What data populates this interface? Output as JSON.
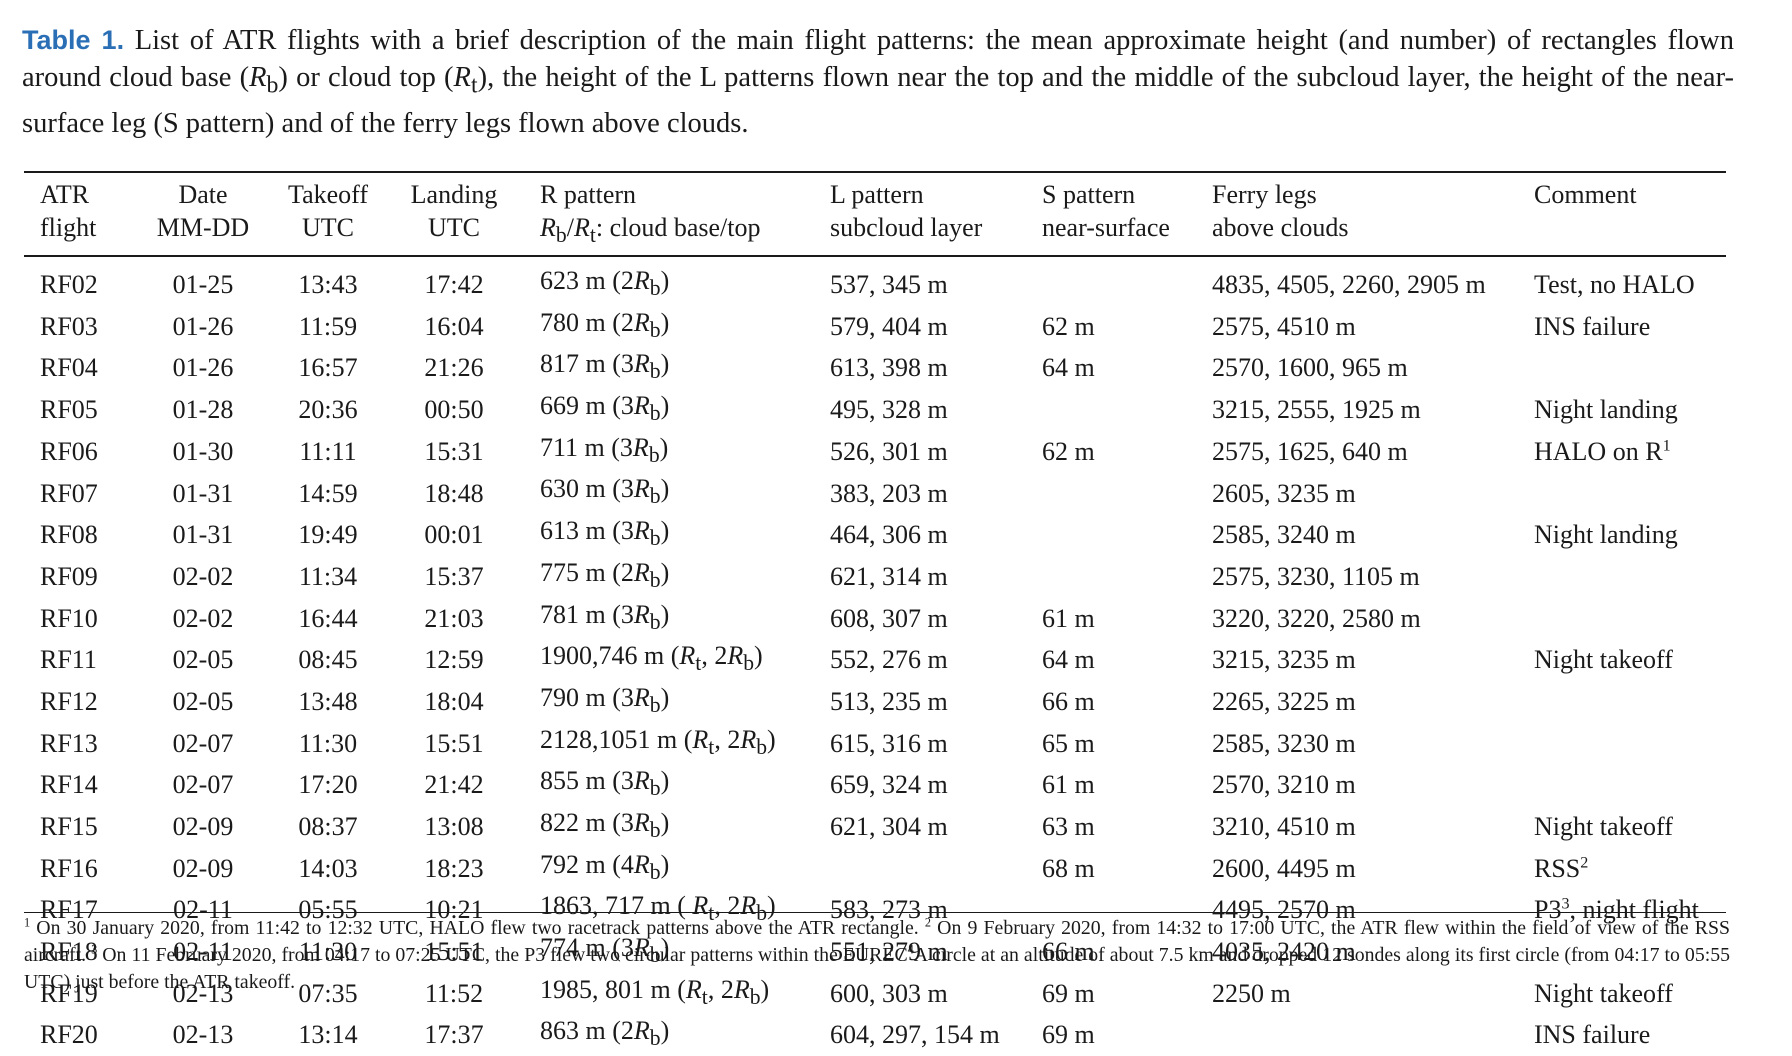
{
  "caption": {
    "label": "Table 1.",
    "text": "List of ATR flights with a brief description of the main flight patterns: the mean approximate height (and number) of rectangles flown around cloud base (Rb) or cloud top (Rt), the height of the L patterns flown near the top and the middle of the subcloud layer, the height of the near-surface leg (S pattern) and of the ferry legs flown above clouds."
  },
  "headers": {
    "atr": [
      "ATR",
      "flight"
    ],
    "date": [
      "Date",
      "MM-DD"
    ],
    "takeoff": [
      "Takeoff",
      "UTC"
    ],
    "landing": [
      "Landing",
      "UTC"
    ],
    "r": [
      "R pattern",
      "Rb/Rt: cloud base/top"
    ],
    "l": [
      "L pattern",
      "subcloud layer"
    ],
    "s": [
      "S pattern",
      "near-surface"
    ],
    "ferry": [
      "Ferry legs",
      "above clouds"
    ],
    "comment": [
      "Comment",
      ""
    ]
  },
  "rows": [
    {
      "atr": "RF02",
      "date": "01-25",
      "takeoff": "13:43",
      "landing": "17:42",
      "r": "623 m (2Rb)",
      "l": "537, 345 m",
      "s": "",
      "ferry": "4835, 4505, 2260, 2905 m",
      "comment": "Test, no HALO"
    },
    {
      "atr": "RF03",
      "date": "01-26",
      "takeoff": "11:59",
      "landing": "16:04",
      "r": "780 m (2Rb)",
      "l": "579, 404 m",
      "s": "62 m",
      "ferry": "2575, 4510 m",
      "comment": "INS failure"
    },
    {
      "atr": "RF04",
      "date": "01-26",
      "takeoff": "16:57",
      "landing": "21:26",
      "r": "817 m (3Rb)",
      "l": "613, 398 m",
      "s": "64 m",
      "ferry": "2570, 1600, 965 m",
      "comment": ""
    },
    {
      "atr": "RF05",
      "date": "01-28",
      "takeoff": "20:36",
      "landing": "00:50",
      "r": "669 m (3Rb)",
      "l": "495, 328 m",
      "s": "",
      "ferry": "3215, 2555, 1925 m",
      "comment": "Night landing"
    },
    {
      "atr": "RF06",
      "date": "01-30",
      "takeoff": "11:11",
      "landing": "15:31",
      "r": "711 m (3Rb)",
      "l": "526, 301 m",
      "s": "62 m",
      "ferry": "2575, 1625, 640 m",
      "comment": "HALO on R1"
    },
    {
      "atr": "RF07",
      "date": "01-31",
      "takeoff": "14:59",
      "landing": "18:48",
      "r": "630 m (3Rb)",
      "l": "383, 203 m",
      "s": "",
      "ferry": "2605, 3235 m",
      "comment": ""
    },
    {
      "atr": "RF08",
      "date": "01-31",
      "takeoff": "19:49",
      "landing": "00:01",
      "r": "613 m (3Rb)",
      "l": "464, 306 m",
      "s": "",
      "ferry": "2585, 3240 m",
      "comment": "Night landing"
    },
    {
      "atr": "RF09",
      "date": "02-02",
      "takeoff": "11:34",
      "landing": "15:37",
      "r": "775 m (2Rb)",
      "l": "621, 314 m",
      "s": "",
      "ferry": "2575, 3230, 1105 m",
      "comment": ""
    },
    {
      "atr": "RF10",
      "date": "02-02",
      "takeoff": "16:44",
      "landing": "21:03",
      "r": "781 m (3Rb)",
      "l": "608, 307 m",
      "s": "61 m",
      "ferry": "3220, 3220, 2580 m",
      "comment": ""
    },
    {
      "atr": "RF11",
      "date": "02-05",
      "takeoff": "08:45",
      "landing": "12:59",
      "r": "1900,746 m (Rt, 2Rb)",
      "l": "552, 276 m",
      "s": "64 m",
      "ferry": "3215, 3235 m",
      "comment": "Night takeoff"
    },
    {
      "atr": "RF12",
      "date": "02-05",
      "takeoff": "13:48",
      "landing": "18:04",
      "r": "790 m (3Rb)",
      "l": "513, 235 m",
      "s": "66 m",
      "ferry": "2265, 3225 m",
      "comment": ""
    },
    {
      "atr": "RF13",
      "date": "02-07",
      "takeoff": "11:30",
      "landing": "15:51",
      "r": "2128,1051 m (Rt, 2Rb)",
      "l": "615, 316 m",
      "s": "65 m",
      "ferry": "2585, 3230 m",
      "comment": ""
    },
    {
      "atr": "RF14",
      "date": "02-07",
      "takeoff": "17:20",
      "landing": "21:42",
      "r": "855 m (3Rb)",
      "l": "659, 324 m",
      "s": "61 m",
      "ferry": "2570, 3210 m",
      "comment": ""
    },
    {
      "atr": "RF15",
      "date": "02-09",
      "takeoff": "08:37",
      "landing": "13:08",
      "r": "822 m (3Rb)",
      "l": "621, 304 m",
      "s": "63 m",
      "ferry": "3210, 4510 m",
      "comment": "Night takeoff"
    },
    {
      "atr": "RF16",
      "date": "02-09",
      "takeoff": "14:03",
      "landing": "18:23",
      "r": "792 m (4Rb)",
      "l": "",
      "s": "68 m",
      "ferry": "2600, 4495 m",
      "comment": "RSS2"
    },
    {
      "atr": "RF17",
      "date": "02-11",
      "takeoff": "05:55",
      "landing": "10:21",
      "r": "1863, 717 m ( Rt, 2Rb)",
      "l": "583, 273 m",
      "s": "",
      "ferry": "4495, 2570 m",
      "comment": "P33, night flight"
    },
    {
      "atr": "RF18",
      "date": "02-11",
      "takeoff": "11:30",
      "landing": "15:51",
      "r": "774 m (3Rb)",
      "l": "551, 279 m",
      "s": "66 m",
      "ferry": "4035, 2420 m",
      "comment": ""
    },
    {
      "atr": "RF19",
      "date": "02-13",
      "takeoff": "07:35",
      "landing": "11:52",
      "r": "1985, 801 m (Rt, 2Rb)",
      "l": "600, 303 m",
      "s": "69 m",
      "ferry": "2250 m",
      "comment": "Night takeoff"
    },
    {
      "atr": "RF20",
      "date": "02-13",
      "takeoff": "13:14",
      "landing": "17:37",
      "r": "863 m (2Rb)",
      "l": "604, 297, 154 m",
      "s": "69 m",
      "ferry": "",
      "comment": "INS failure"
    }
  ],
  "footnotes": "1 On 30 January 2020, from 11:42 to 12:32 UTC, HALO flew two racetrack patterns above the ATR rectangle. 2 On 9 February 2020, from 14:32 to 17:00 UTC, the ATR flew within the field of view of the RSS aircraft. 3 On 11 February 2020, from 04:17 to 07:25 UTC, the P3 flew two circular patterns within the EUREC4A circle at an altitude of about 7.5 km and dropped 12 sondes along its first circle (from 04:17 to 05:55 UTC) just before the ATR takeoff."
}
